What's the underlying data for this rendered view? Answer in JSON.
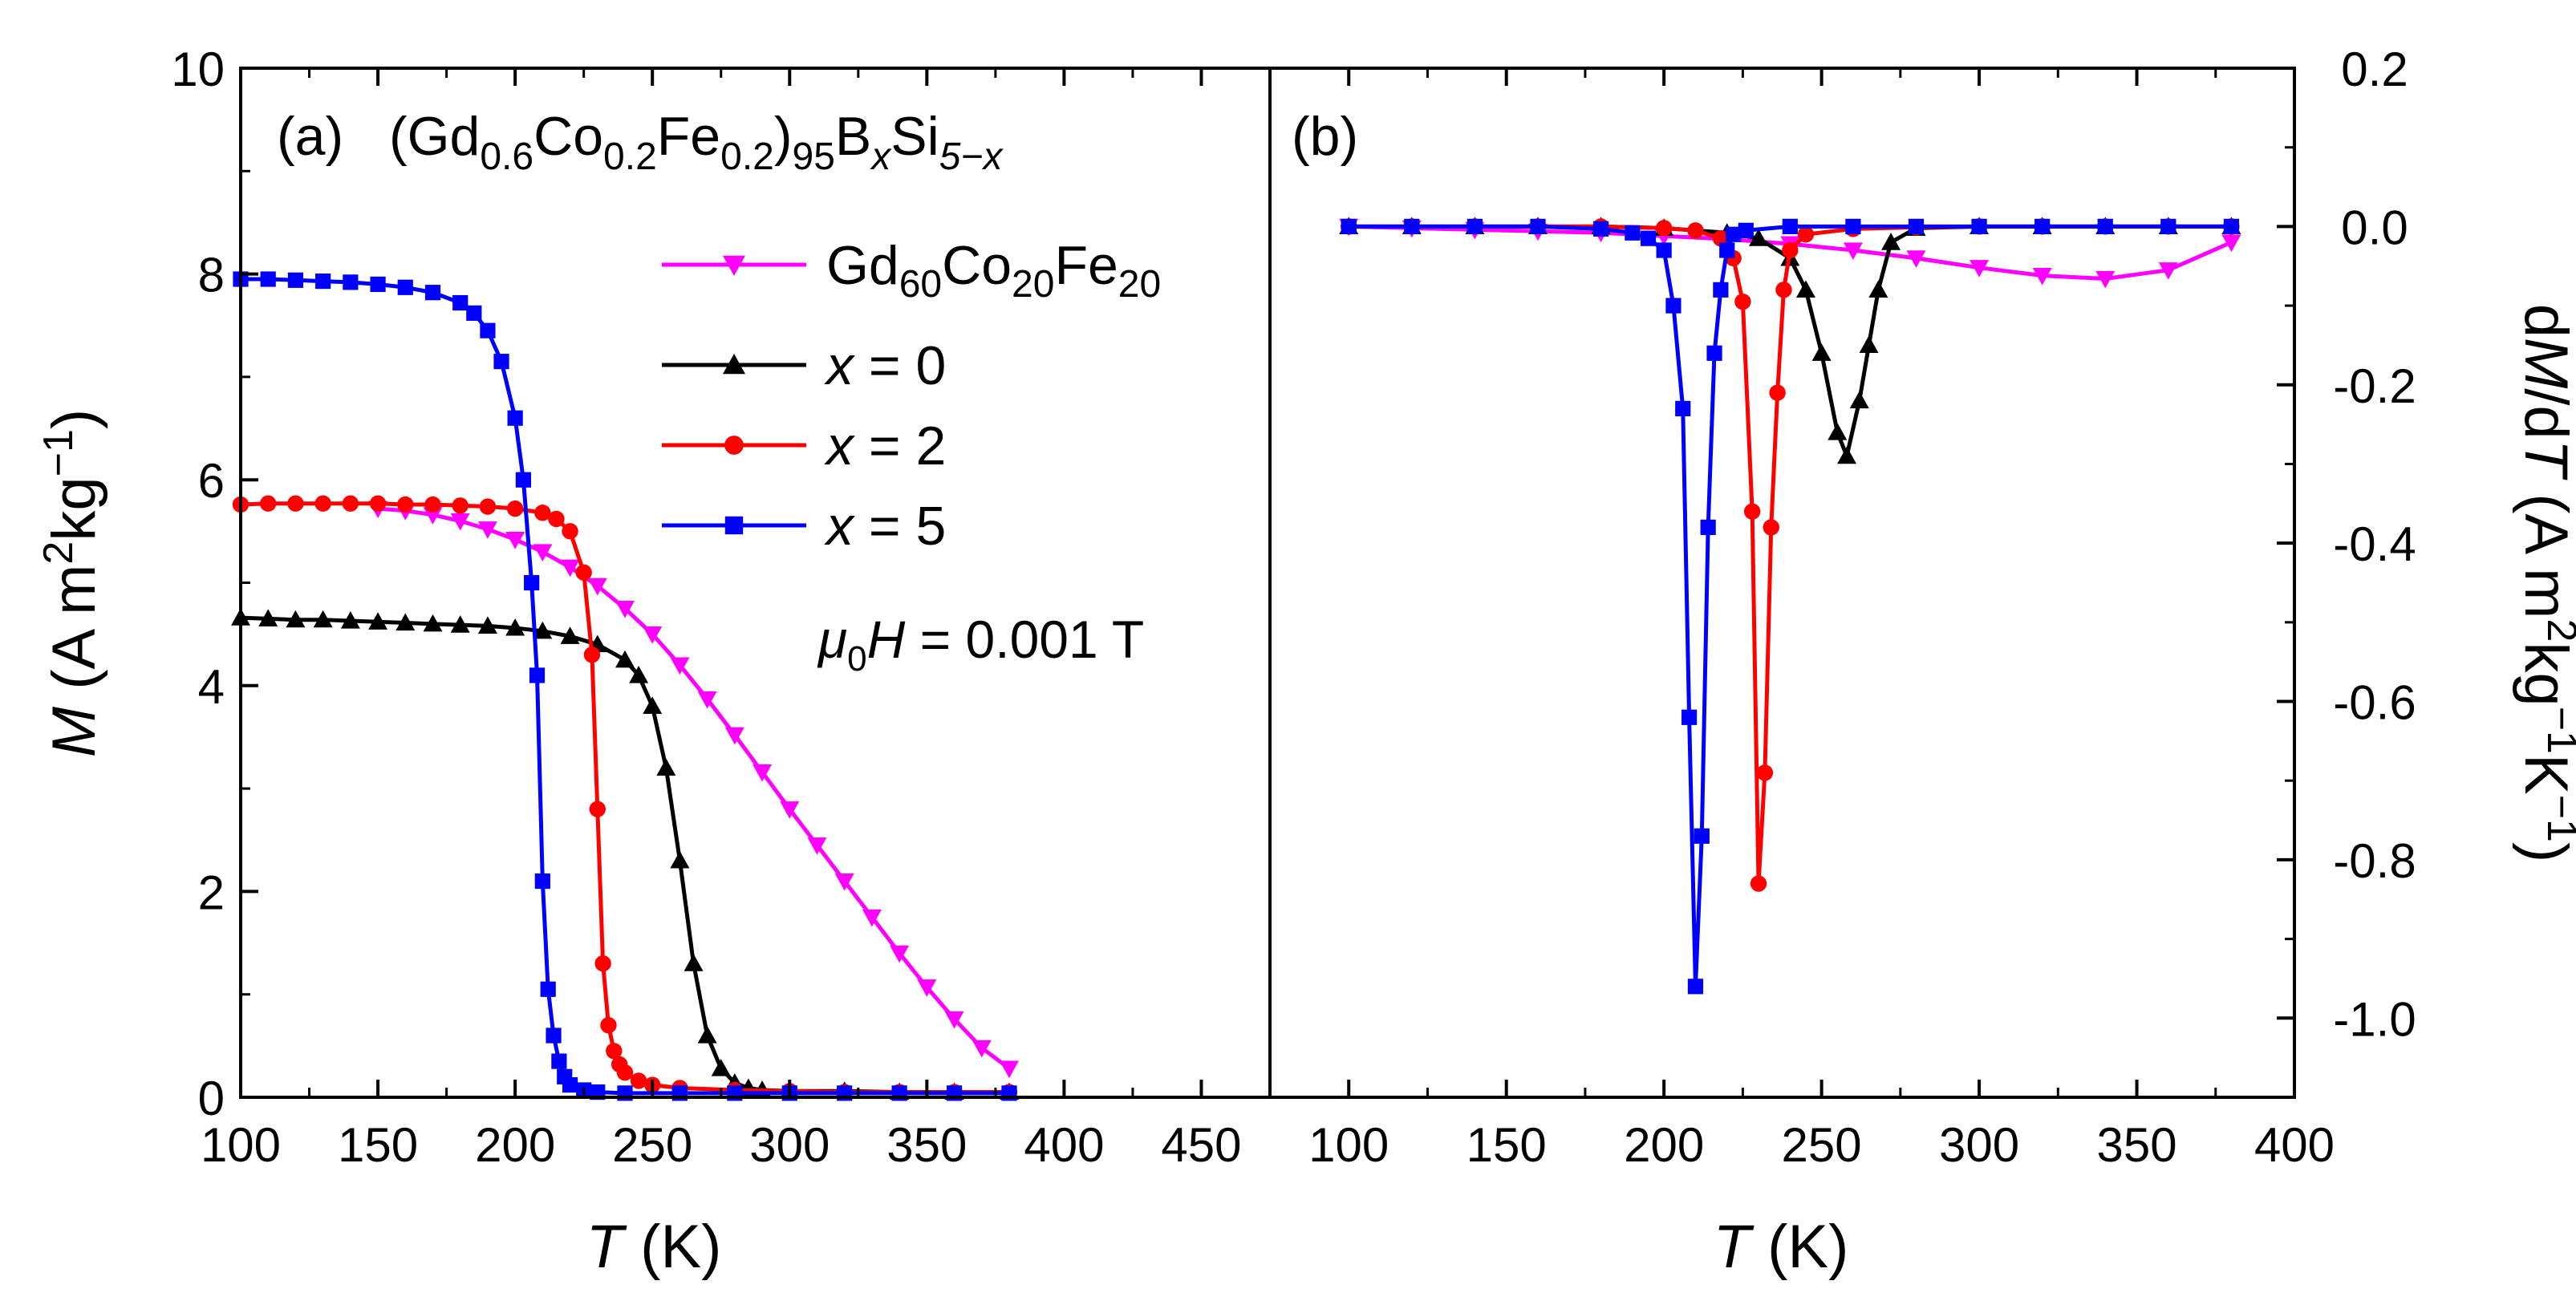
{
  "chart_data": [
    {
      "panel": "a",
      "type": "line",
      "panel_label": "(a)",
      "title": {
        "prefix": "(Gd",
        "s1": "0.6",
        "mid1": "Co",
        "s2": "0.2",
        "mid2": "Fe",
        "s3": "0.2",
        "mid3": ")",
        "s4": "95",
        "mid4": "B",
        "s5": "x",
        "mid5": "Si",
        "s6": "5−x"
      },
      "xlabel": {
        "var": "T",
        "unit": " (K)"
      },
      "ylabel": {
        "var": "M",
        "unit1": " (A m",
        "sup1": "2",
        "unit2": "kg",
        "sup2": "−1",
        "unit3": ")"
      },
      "xlim": [
        100,
        475
      ],
      "ylim": [
        0,
        10
      ],
      "xticks": [
        100,
        150,
        200,
        250,
        300,
        350,
        400,
        450
      ],
      "yticks": [
        0,
        2,
        4,
        6,
        8,
        10
      ],
      "field_annotation": {
        "mu": "μ",
        "sub": "0",
        "var": "H",
        "rest": " = 0.001 T"
      },
      "series": [
        {
          "name": "Gd60Co20Fe20",
          "color": "#ff00ff",
          "marker": "triangle-down",
          "x": [
            150,
            160,
            170,
            180,
            190,
            200,
            210,
            220,
            230,
            240,
            250,
            260,
            270,
            280,
            290,
            300,
            310,
            320,
            330,
            340,
            350,
            360,
            370,
            380
          ],
          "y": [
            5.72,
            5.7,
            5.66,
            5.6,
            5.52,
            5.42,
            5.3,
            5.15,
            4.97,
            4.75,
            4.5,
            4.2,
            3.87,
            3.52,
            3.16,
            2.8,
            2.45,
            2.1,
            1.75,
            1.4,
            1.07,
            0.76,
            0.48,
            0.28
          ]
        },
        {
          "name": "x = 0",
          "color": "#000000",
          "marker": "triangle-up",
          "x": [
            100,
            110,
            120,
            130,
            140,
            150,
            160,
            170,
            180,
            190,
            200,
            210,
            220,
            230,
            240,
            245,
            250,
            255,
            260,
            265,
            270,
            275,
            280,
            285,
            290,
            300,
            320,
            340,
            360,
            380
          ],
          "y": [
            4.66,
            4.65,
            4.64,
            4.64,
            4.63,
            4.62,
            4.61,
            4.6,
            4.59,
            4.58,
            4.56,
            4.53,
            4.48,
            4.4,
            4.25,
            4.1,
            3.8,
            3.2,
            2.3,
            1.3,
            0.6,
            0.28,
            0.14,
            0.09,
            0.07,
            0.06,
            0.06,
            0.05,
            0.05,
            0.05
          ]
        },
        {
          "name": "x = 2",
          "color": "#ff0000",
          "marker": "circle",
          "x": [
            100,
            110,
            120,
            130,
            140,
            150,
            160,
            170,
            180,
            190,
            200,
            210,
            215,
            220,
            225,
            228,
            230,
            232,
            234,
            236,
            238,
            240,
            245,
            250,
            260,
            280,
            300,
            320,
            340,
            360,
            380
          ],
          "y": [
            5.76,
            5.77,
            5.77,
            5.77,
            5.77,
            5.77,
            5.76,
            5.76,
            5.75,
            5.74,
            5.72,
            5.68,
            5.62,
            5.5,
            5.1,
            4.3,
            2.8,
            1.3,
            0.7,
            0.45,
            0.32,
            0.24,
            0.16,
            0.12,
            0.09,
            0.07,
            0.06,
            0.05,
            0.05,
            0.05,
            0.05
          ]
        },
        {
          "name": "x = 5",
          "color": "#0000ff",
          "marker": "square",
          "x": [
            100,
            110,
            120,
            130,
            140,
            150,
            160,
            170,
            180,
            185,
            190,
            195,
            200,
            203,
            206,
            208,
            210,
            212,
            214,
            216,
            218,
            220,
            225,
            230,
            240,
            260,
            280,
            300,
            320,
            340,
            360,
            380
          ],
          "y": [
            7.95,
            7.95,
            7.94,
            7.93,
            7.92,
            7.9,
            7.87,
            7.82,
            7.72,
            7.62,
            7.45,
            7.15,
            6.6,
            6.0,
            5.0,
            4.1,
            2.1,
            1.05,
            0.6,
            0.35,
            0.2,
            0.12,
            0.07,
            0.05,
            0.04,
            0.04,
            0.04,
            0.04,
            0.04,
            0.04,
            0.04,
            0.04
          ]
        }
      ]
    },
    {
      "panel": "b",
      "type": "line",
      "panel_label": "(b)",
      "xlabel": {
        "var": "T",
        "unit": " (K)"
      },
      "ylabel": {
        "pre": "d",
        "var1": "M",
        "mid": "/d",
        "var2": "T",
        "unit1": " (A m",
        "sup1": "2",
        "unit2": "kg",
        "sup2": "−1",
        "unit3": "K",
        "sup3": "−1",
        "unit4": ")"
      },
      "xlim": [
        75,
        400
      ],
      "ylim": [
        -1.1,
        0.2
      ],
      "xticks": [
        100,
        150,
        200,
        250,
        300,
        350,
        400
      ],
      "yticks": [
        0.2,
        0.0,
        -0.2,
        -0.4,
        -0.6,
        -0.8,
        -1.0
      ],
      "ytick_labels": [
        "0.2",
        "0.0",
        "-0.2",
        "-0.4",
        "-0.6",
        "-0.8",
        "-1.0"
      ],
      "series": [
        {
          "name": "Gd60Co20Fe20",
          "color": "#ff00ff",
          "marker": "triangle-down",
          "x": [
            100,
            120,
            140,
            160,
            180,
            200,
            220,
            240,
            260,
            280,
            300,
            320,
            340,
            360,
            380
          ],
          "y": [
            0.0,
            -0.002,
            -0.004,
            -0.006,
            -0.008,
            -0.012,
            -0.016,
            -0.022,
            -0.03,
            -0.04,
            -0.052,
            -0.062,
            -0.066,
            -0.055,
            -0.02
          ]
        },
        {
          "name": "x = 0",
          "color": "#000000",
          "marker": "triangle-up",
          "x": [
            100,
            120,
            140,
            160,
            180,
            200,
            220,
            230,
            240,
            245,
            250,
            255,
            258,
            262,
            265,
            268,
            272,
            280,
            300,
            320,
            340,
            360,
            380
          ],
          "y": [
            0.0,
            0.0,
            0.0,
            0.0,
            0.0,
            -0.002,
            -0.008,
            -0.015,
            -0.04,
            -0.08,
            -0.16,
            -0.26,
            -0.29,
            -0.22,
            -0.15,
            -0.08,
            -0.02,
            -0.002,
            0.0,
            0.0,
            0.0,
            0.0,
            0.0
          ]
        },
        {
          "name": "x = 2",
          "color": "#ff0000",
          "marker": "circle",
          "x": [
            100,
            120,
            140,
            160,
            180,
            200,
            210,
            218,
            222,
            225,
            228,
            230,
            232,
            234,
            236,
            238,
            240,
            245,
            260,
            280,
            300,
            320,
            340,
            360,
            380
          ],
          "y": [
            0.0,
            0.0,
            0.0,
            0.0,
            0.0,
            -0.002,
            -0.005,
            -0.015,
            -0.04,
            -0.095,
            -0.36,
            -0.83,
            -0.69,
            -0.38,
            -0.21,
            -0.08,
            -0.03,
            -0.01,
            -0.003,
            -0.001,
            0.0,
            0.0,
            0.0,
            0.0,
            0.0
          ]
        },
        {
          "name": "x = 5",
          "color": "#0000ff",
          "marker": "square",
          "x": [
            100,
            120,
            140,
            160,
            180,
            190,
            195,
            200,
            203,
            206,
            208,
            210,
            212,
            214,
            216,
            218,
            220,
            222,
            226,
            240,
            260,
            280,
            300,
            320,
            340,
            360,
            380
          ],
          "y": [
            0.0,
            0.0,
            0.0,
            0.0,
            -0.003,
            -0.008,
            -0.015,
            -0.03,
            -0.1,
            -0.23,
            -0.62,
            -0.96,
            -0.77,
            -0.38,
            -0.16,
            -0.08,
            -0.03,
            -0.01,
            -0.005,
            0.0,
            0.0,
            0.0,
            0.0,
            0.0,
            0.0,
            0.0,
            0.0
          ]
        }
      ]
    }
  ]
}
